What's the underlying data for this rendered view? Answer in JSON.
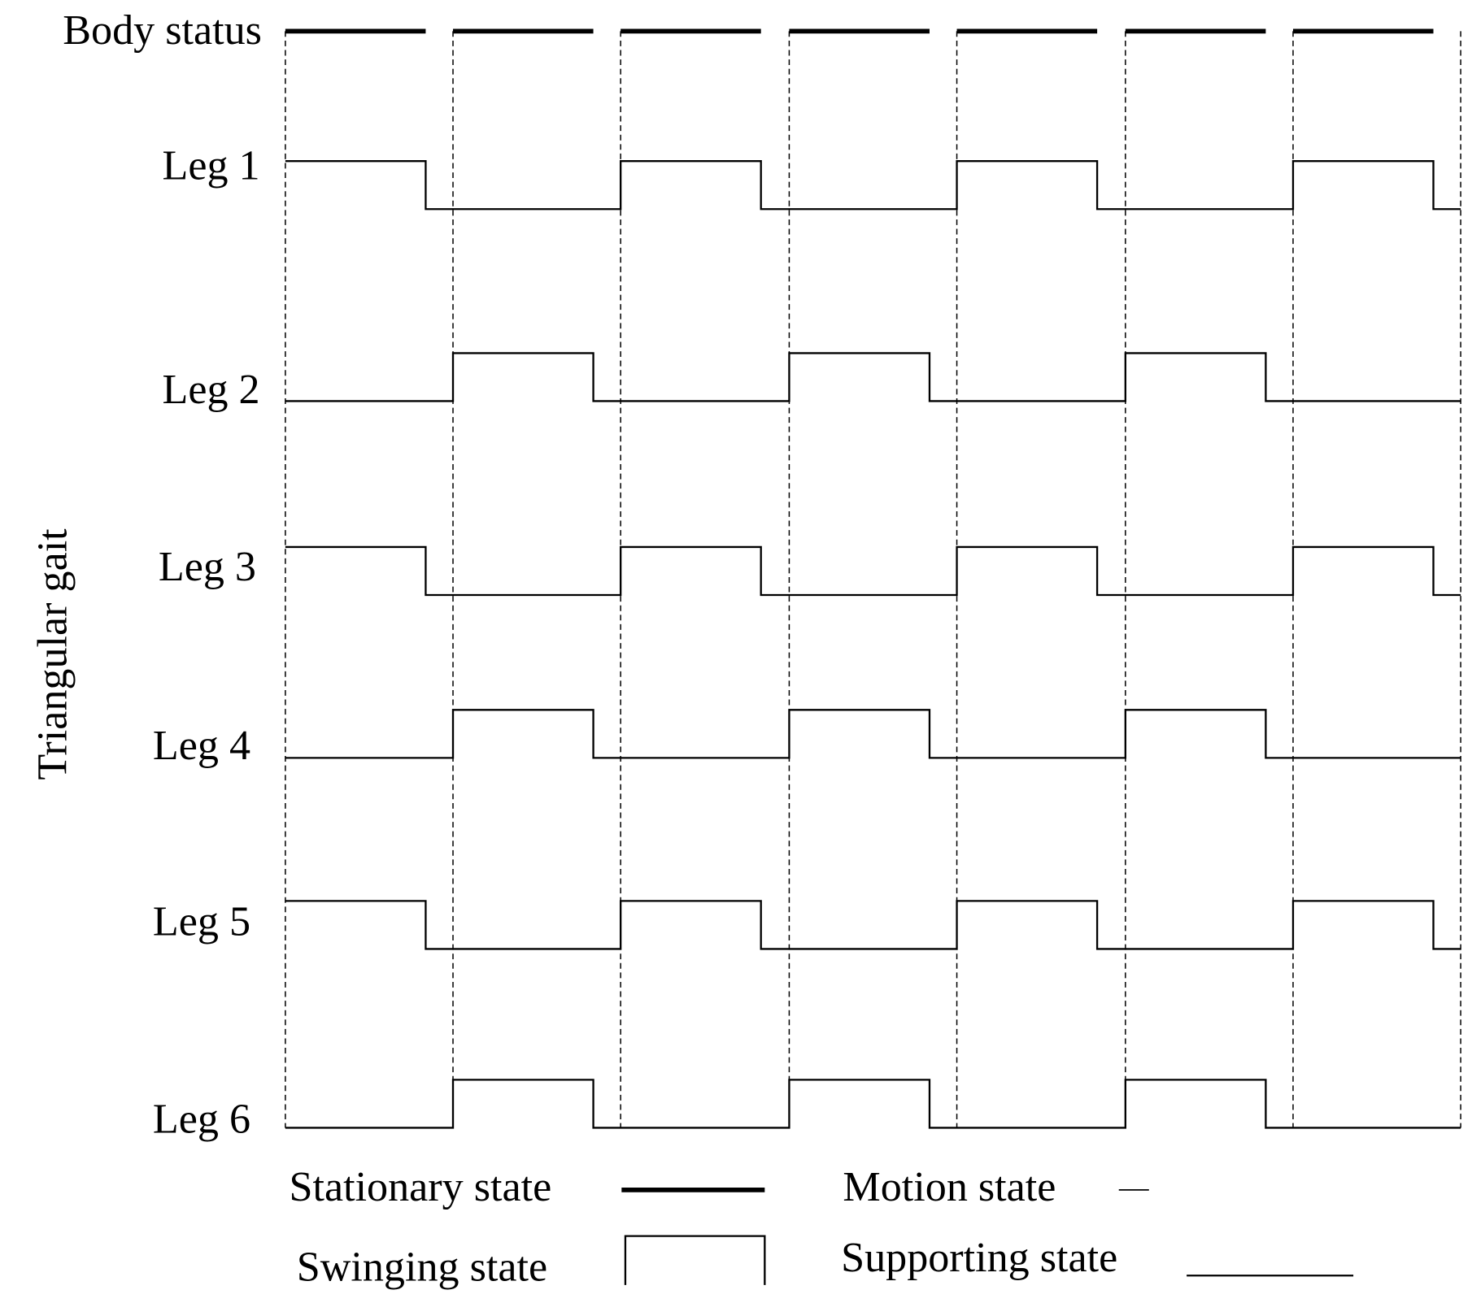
{
  "body_status": "Body status",
  "y_axis_title": "Triangular gait",
  "legs": [
    "Leg 1",
    "Leg 2",
    "Leg 3",
    "Leg 4",
    "Leg 5",
    "Leg 6"
  ],
  "legend": [
    "Stationary state",
    "Motion state",
    "Swinging state",
    "Supporting state"
  ]
}
